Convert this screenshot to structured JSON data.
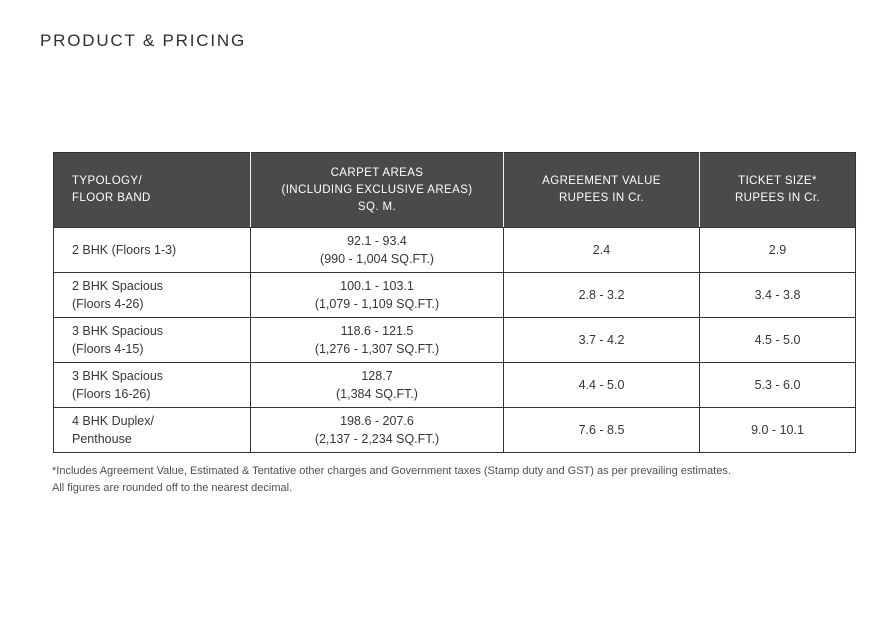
{
  "page": {
    "title": "PRODUCT & PRICING"
  },
  "pricing_table": {
    "headers": [
      [
        "TYPOLOGY/",
        "FLOOR BAND"
      ],
      [
        "CARPET AREAS",
        "(INCLUDING EXCLUSIVE AREAS)",
        "SQ. M."
      ],
      [
        "AGREEMENT VALUE",
        "RUPEES IN Cr."
      ],
      [
        "TICKET SIZE*",
        "RUPEES IN Cr."
      ]
    ],
    "rows": [
      {
        "typology": [
          "2 BHK (Floors 1-3)"
        ],
        "carpet_area": [
          "92.1 - 93.4",
          "(990 - 1,004 SQ.FT.)"
        ],
        "agreement_value": "2.4",
        "ticket_size": "2.9"
      },
      {
        "typology": [
          "2 BHK Spacious",
          "(Floors 4-26)"
        ],
        "carpet_area": [
          "100.1 - 103.1",
          "(1,079 - 1,109 SQ.FT.)"
        ],
        "agreement_value": "2.8 - 3.2",
        "ticket_size": "3.4 - 3.8"
      },
      {
        "typology": [
          "3 BHK Spacious",
          "(Floors 4-15)"
        ],
        "carpet_area": [
          "118.6 - 121.5",
          "(1,276 - 1,307 SQ.FT.)"
        ],
        "agreement_value": "3.7 - 4.2",
        "ticket_size": "4.5 - 5.0"
      },
      {
        "typology": [
          "3 BHK Spacious",
          "(Floors 16-26)"
        ],
        "carpet_area": [
          "128.7",
          "(1,384 SQ.FT.)"
        ],
        "agreement_value": "4.4 - 5.0",
        "ticket_size": "5.3 - 6.0"
      },
      {
        "typology": [
          "4 BHK Duplex/",
          "Penthouse"
        ],
        "carpet_area": [
          "198.6 - 207.6",
          "(2,137 - 2,234 SQ.FT.)"
        ],
        "agreement_value": "7.6 - 8.5",
        "ticket_size": "9.0 - 10.1"
      }
    ]
  },
  "footnotes": [
    "*Includes Agreement Value, Estimated & Tentative other charges and Government taxes (Stamp duty and GST) as per prevailing estimates.",
    "All figures are rounded off to the nearest decimal."
  ],
  "colors": {
    "header_bg": "#4b4949",
    "header_text": "#ffffff",
    "border": "#333333",
    "body_text": "#363636",
    "footnote_text": "#4f4f4f"
  }
}
